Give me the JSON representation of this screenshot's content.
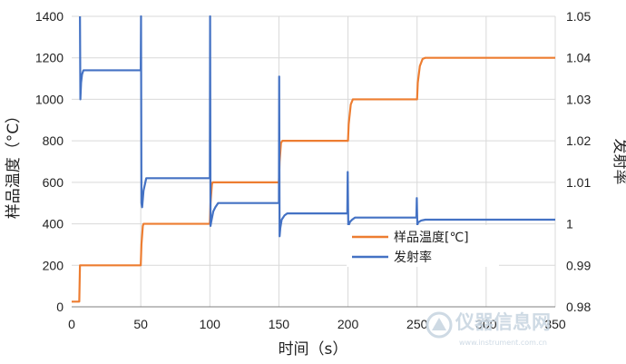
{
  "chart_data": {
    "type": "line",
    "xlabel": "时间（s）",
    "ylabel_left": "样品温度（°C）",
    "ylabel_right": "发射率",
    "xlim": [
      0,
      350
    ],
    "x_ticks": [
      "0",
      "50",
      "100",
      "150",
      "200",
      "250",
      "300",
      "350"
    ],
    "ylim_left": [
      0,
      1400
    ],
    "y_ticks_left": [
      "0",
      "200",
      "400",
      "600",
      "800",
      "1000",
      "1200",
      "1400"
    ],
    "ylim_right": [
      0.98,
      1.05
    ],
    "y_ticks_right": [
      "0.98",
      "0.99",
      "1",
      "1.01",
      "1.02",
      "1.03",
      "1.04",
      "1.05"
    ],
    "grid": true,
    "legend_position": "lower-right inside plot",
    "series": [
      {
        "name": "样品温度[℃]",
        "axis": "left",
        "color": "#ED7D31",
        "x": [
          0,
          5.5,
          6,
          50,
          50.5,
          51.5,
          52,
          100,
          100.5,
          101.5,
          102,
          150,
          150.5,
          151.5,
          152.5,
          200,
          200.5,
          202,
          203.5,
          250,
          250.5,
          252,
          254,
          256,
          350
        ],
        "values": [
          25,
          25,
          200,
          200,
          300,
          390,
          400,
          400,
          500,
          590,
          600,
          600,
          700,
          790,
          800,
          800,
          880,
          975,
          1000,
          1000,
          1080,
          1160,
          1195,
          1200,
          1200
        ]
      },
      {
        "name": "发射率",
        "axis": "right",
        "color": "#4472C4",
        "x": [
          0,
          5.5,
          6,
          6.3,
          6.8,
          7.5,
          8.5,
          10,
          50,
          50.2,
          50.5,
          51,
          52,
          54,
          56,
          100,
          100.2,
          100.5,
          101,
          102.5,
          104,
          106,
          150,
          150.2,
          150.5,
          151,
          152,
          154,
          156,
          199.5,
          199.8,
          200.2,
          200.7,
          201.5,
          203,
          205,
          207,
          249.5,
          249.8,
          250.2,
          250.7,
          251.5,
          253,
          256,
          350
        ],
        "values": [
          null,
          null,
          1.05,
          1.03,
          1.034,
          1.036,
          1.037,
          1.037,
          1.037,
          1.05,
          1.005,
          1.004,
          1.008,
          1.011,
          1.011,
          1.011,
          1.05,
          0.9995,
          1.0005,
          1.003,
          1.004,
          1.005,
          1.005,
          1.0355,
          0.997,
          0.999,
          1.001,
          1.002,
          1.0025,
          1.0025,
          1.0125,
          0.9995,
          0.9998,
          1.0005,
          1.001,
          1.0015,
          1.0015,
          1.0015,
          1.0062,
          0.9997,
          1.0003,
          1.0005,
          1.0008,
          1.001,
          1.001
        ]
      }
    ]
  },
  "watermark": {
    "text": "仪器信息网",
    "url": "www.instrument.com.cn",
    "icon": "instrument-logo-icon"
  }
}
